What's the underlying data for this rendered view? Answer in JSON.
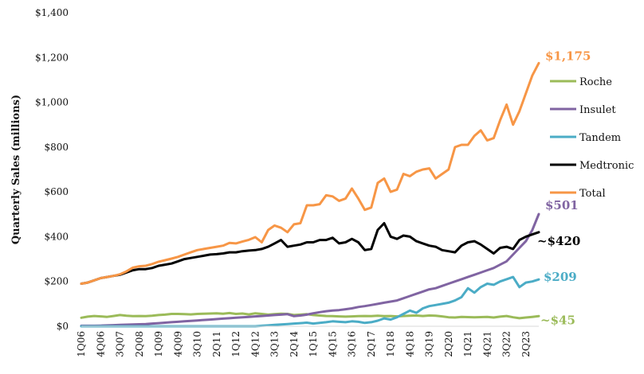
{
  "chart_data": {
    "type": "line",
    "ylabel": "Quarterly Sales (millions)",
    "ylim": [
      0,
      1400
    ],
    "y_ticks": [
      0,
      200,
      400,
      600,
      800,
      1000,
      1200,
      1400
    ],
    "y_tick_labels": [
      "$0",
      "$200",
      "$400",
      "$600",
      "$800",
      "$1,000",
      "$1,200",
      "$1,400"
    ],
    "grid": false,
    "legend_position": "right",
    "x": [
      "1Q06",
      "2Q06",
      "3Q06",
      "4Q06",
      "1Q07",
      "2Q07",
      "3Q07",
      "4Q07",
      "1Q08",
      "2Q08",
      "3Q08",
      "4Q08",
      "1Q09",
      "2Q09",
      "3Q09",
      "4Q09",
      "1Q10",
      "2Q10",
      "3Q10",
      "4Q10",
      "1Q11",
      "2Q11",
      "3Q11",
      "4Q11",
      "1Q12",
      "2Q12",
      "3Q12",
      "4Q12",
      "1Q13",
      "2Q13",
      "3Q13",
      "4Q13",
      "1Q14",
      "2Q14",
      "3Q14",
      "4Q14",
      "1Q15",
      "2Q15",
      "3Q15",
      "4Q15",
      "1Q16",
      "2Q16",
      "3Q16",
      "4Q16",
      "1Q17",
      "2Q17",
      "3Q17",
      "4Q17",
      "1Q18",
      "2Q18",
      "3Q18",
      "4Q18",
      "1Q19",
      "2Q19",
      "3Q19",
      "4Q19",
      "1Q20",
      "2Q20",
      "3Q20",
      "4Q20",
      "1Q21",
      "2Q21",
      "3Q21",
      "4Q21",
      "1Q22",
      "2Q22",
      "3Q22",
      "4Q22",
      "1Q23",
      "2Q23",
      "3Q23",
      "4Q23"
    ],
    "x_tick_labels": [
      "1Q06",
      "4Q06",
      "3Q07",
      "2Q08",
      "1Q09",
      "4Q09",
      "3Q10",
      "2Q11",
      "1Q12",
      "4Q12",
      "3Q13",
      "2Q14",
      "1Q15",
      "4Q15",
      "3Q16",
      "2Q17",
      "1Q18",
      "4Q18",
      "3Q19",
      "2Q20",
      "1Q21",
      "4Q21",
      "3Q22",
      "2Q23"
    ],
    "series": [
      {
        "name": "Roche",
        "color": "#9bbb59",
        "values": [
          38,
          43,
          46,
          44,
          42,
          46,
          50,
          47,
          45,
          46,
          45,
          47,
          50,
          52,
          55,
          55,
          54,
          53,
          55,
          56,
          57,
          58,
          56,
          59,
          55,
          57,
          53,
          58,
          55,
          52,
          54,
          56,
          55,
          50,
          52,
          54,
          50,
          48,
          46,
          45,
          44,
          43,
          44,
          45,
          46,
          45,
          47,
          45,
          46,
          44,
          46,
          47,
          48,
          46,
          48,
          47,
          44,
          40,
          39,
          42,
          41,
          40,
          41,
          42,
          39,
          43,
          46,
          40,
          36,
          39,
          42,
          45
        ],
        "end_label": "~$45"
      },
      {
        "name": "Insulet",
        "color": "#8064a2",
        "values": [
          2,
          2,
          2,
          3,
          4,
          5,
          6,
          7,
          8,
          9,
          10,
          12,
          14,
          16,
          18,
          20,
          22,
          24,
          26,
          28,
          30,
          32,
          34,
          36,
          38,
          40,
          42,
          44,
          46,
          48,
          50,
          52,
          54,
          45,
          48,
          52,
          58,
          63,
          67,
          70,
          72,
          76,
          80,
          86,
          90,
          95,
          100,
          105,
          110,
          115,
          125,
          135,
          145,
          155,
          165,
          170,
          180,
          190,
          200,
          210,
          220,
          230,
          240,
          250,
          260,
          275,
          290,
          320,
          350,
          380,
          430,
          501
        ],
        "end_label": "$501"
      },
      {
        "name": "Tandem",
        "color": "#4bacc6",
        "values": [
          0,
          0,
          0,
          0,
          0,
          0,
          0,
          0,
          0,
          0,
          0,
          0,
          0,
          0,
          0,
          0,
          0,
          0,
          0,
          0,
          0,
          0,
          0,
          0,
          0,
          0,
          0,
          0,
          2,
          4,
          6,
          8,
          10,
          12,
          14,
          16,
          12,
          15,
          18,
          22,
          20,
          18,
          22,
          20,
          15,
          18,
          25,
          35,
          30,
          40,
          55,
          70,
          60,
          80,
          90,
          95,
          100,
          105,
          115,
          130,
          170,
          150,
          175,
          190,
          185,
          200,
          210,
          220,
          175,
          195,
          200,
          209
        ],
        "end_label": "$209"
      },
      {
        "name": "Medtronic",
        "color": "#000000",
        "values": [
          190,
          195,
          205,
          215,
          220,
          225,
          230,
          240,
          250,
          255,
          255,
          260,
          270,
          275,
          280,
          290,
          300,
          305,
          310,
          315,
          320,
          322,
          325,
          330,
          330,
          335,
          338,
          340,
          345,
          355,
          370,
          385,
          355,
          360,
          365,
          375,
          375,
          385,
          385,
          395,
          370,
          375,
          390,
          375,
          340,
          345,
          430,
          460,
          400,
          390,
          405,
          400,
          380,
          370,
          360,
          355,
          340,
          335,
          330,
          360,
          375,
          380,
          365,
          345,
          325,
          350,
          355,
          345,
          385,
          400,
          410,
          420
        ],
        "end_label": "~$420"
      },
      {
        "name": "Total",
        "color": "#f79646",
        "values": [
          190,
          195,
          205,
          215,
          220,
          225,
          232,
          245,
          262,
          268,
          270,
          278,
          288,
          295,
          302,
          310,
          320,
          330,
          340,
          345,
          350,
          355,
          360,
          372,
          370,
          378,
          386,
          398,
          375,
          430,
          450,
          440,
          420,
          455,
          460,
          540,
          540,
          545,
          585,
          580,
          560,
          570,
          615,
          570,
          520,
          530,
          640,
          660,
          600,
          610,
          680,
          670,
          690,
          700,
          705,
          660,
          680,
          700,
          800,
          810,
          810,
          850,
          875,
          830,
          840,
          920,
          990,
          900,
          960,
          1040,
          1120,
          1175
        ],
        "end_label": "$1,175"
      }
    ]
  }
}
